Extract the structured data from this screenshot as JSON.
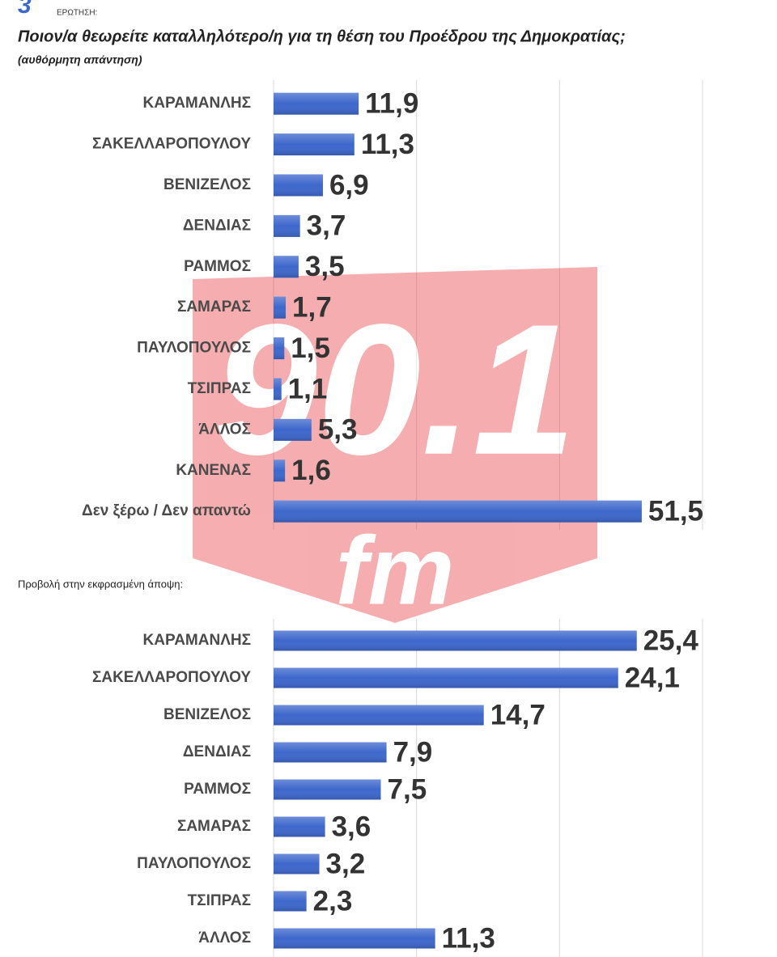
{
  "header": {
    "number": "3",
    "label": "ΕΡΩΤΗΣΗ:"
  },
  "watermark": {
    "station": "90.1",
    "band": "fm"
  },
  "chart_data": [
    {
      "type": "bar",
      "orientation": "horizontal",
      "title": "Ποιον/α  θεωρείτε καταλληλότερο/η  για τη θέση του Προέδρου της Δημοκρατίας;",
      "subtitle": "(αυθόρμητη απάντηση)",
      "categories": [
        "ΚΑΡΑΜΑΝΛΗΣ",
        "ΣΑΚΕΛΛΑΡΟΠΟΥΛΟΥ",
        "ΒΕΝΙΖΕΛΟΣ",
        "ΔΕΝΔΙΑΣ",
        "ΡΑΜΜΟΣ",
        "ΣΑΜΑΡΑΣ",
        "ΠΑΥΛΟΠΟΥΛΟΣ",
        "ΤΣΙΠΡΑΣ",
        "ΆΛΛΟΣ",
        "ΚΑΝΕΝΑΣ",
        "Δεν ξέρω / Δεν απαντώ"
      ],
      "values": [
        11.9,
        11.3,
        6.9,
        3.7,
        3.5,
        1.7,
        1.5,
        1.1,
        5.3,
        1.6,
        51.5
      ],
      "value_labels": [
        "11,9",
        "11,3",
        "6,9",
        "3,7",
        "3,5",
        "1,7",
        "1,5",
        "1,1",
        "5,3",
        "1,6",
        "51,5"
      ],
      "color": "#3d67cc",
      "xlim": [
        0,
        60
      ],
      "xticks": [
        0,
        20,
        40,
        60
      ],
      "grid": true
    },
    {
      "type": "bar",
      "orientation": "horizontal",
      "title": "Προβολή στην εκφρασμένη άποψη:",
      "categories": [
        "ΚΑΡΑΜΑΝΛΗΣ",
        "ΣΑΚΕΛΛΑΡΟΠΟΥΛΟΥ",
        "ΒΕΝΙΖΕΛΟΣ",
        "ΔΕΝΔΙΑΣ",
        "ΡΑΜΜΟΣ",
        "ΣΑΜΑΡΑΣ",
        "ΠΑΥΛΟΠΟΥΛΟΣ",
        "ΤΣΙΠΡΑΣ",
        "ΆΛΛΟΣ"
      ],
      "values": [
        25.4,
        24.1,
        14.7,
        7.9,
        7.5,
        3.6,
        3.2,
        2.3,
        11.3
      ],
      "value_labels": [
        "25,4",
        "24,1",
        "14,7",
        "7,9",
        "7,5",
        "3,6",
        "3,2",
        "2,3",
        "11,3"
      ],
      "color": "#3d67cc",
      "xlim": [
        0,
        30
      ],
      "xticks": [
        0,
        10,
        20,
        30
      ],
      "grid": true
    }
  ]
}
